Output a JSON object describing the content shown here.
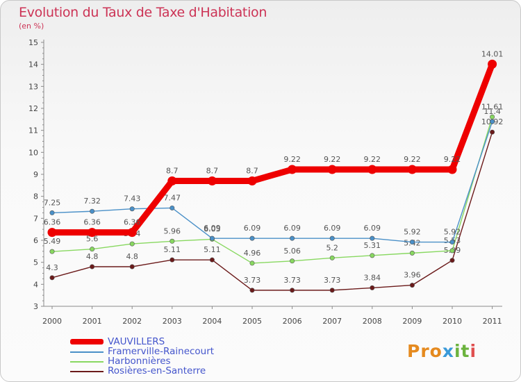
{
  "colors": {
    "title": "#cc3355",
    "axis": "#8a8a8a",
    "grid": "#dddddd",
    "legend_text": "#4455cc"
  },
  "chart_data": {
    "type": "line",
    "title": "Evolution du Taux de Taxe d'Habitation",
    "subtitle": "(en %)",
    "x": [
      "2000",
      "2001",
      "2002",
      "2003",
      "2004",
      "2005",
      "2006",
      "2007",
      "2008",
      "2009",
      "2010",
      "2011"
    ],
    "ylim": [
      3,
      15
    ],
    "yticks": [
      3,
      4,
      5,
      6,
      7,
      8,
      9,
      10,
      11,
      12,
      13,
      14,
      15
    ],
    "grid": false,
    "legend_position": "bottom-left",
    "series": [
      {
        "name": "VAUVILLERS",
        "color": "#ee0000",
        "values": [
          6.36,
          6.36,
          6.36,
          8.7,
          8.7,
          8.7,
          9.22,
          9.22,
          9.22,
          9.22,
          9.22,
          14.01
        ],
        "labels": [
          "6.36",
          "6.36",
          "6.36",
          "8.7",
          "8.7",
          "8.7",
          "9.22",
          "9.22",
          "9.22",
          "9.22",
          "9.22",
          "14.01"
        ]
      },
      {
        "name": "Framerville-Rainecourt",
        "color": "#4a90c8",
        "values": [
          7.25,
          7.32,
          7.43,
          7.47,
          6.09,
          6.09,
          6.09,
          6.09,
          6.09,
          5.92,
          5.92,
          11.4
        ],
        "labels": [
          "7.25",
          "7.32",
          "7.43",
          "7.47",
          "6.09",
          "6.09",
          "6.09",
          "6.09",
          "6.09",
          "5.92",
          "5.92",
          "11.4"
        ]
      },
      {
        "name": "Harbonnières",
        "color": "#88d860",
        "values": [
          5.49,
          5.6,
          5.84,
          5.96,
          6.05,
          4.96,
          5.06,
          5.2,
          5.31,
          5.42,
          5.53,
          11.61
        ],
        "labels": [
          "5.49",
          "5.6",
          "5.84",
          "5.96",
          "6.05",
          "4.96",
          "5.06",
          "5.2",
          "5.31",
          "5.42",
          "5.53",
          "11.61"
        ]
      },
      {
        "name": "Rosières-en-Santerre",
        "color": "#6b1a1a",
        "values": [
          4.3,
          4.8,
          4.8,
          5.11,
          5.11,
          3.73,
          3.73,
          3.73,
          3.84,
          3.96,
          5.09,
          10.92
        ],
        "labels": [
          "4.3",
          "4.8",
          "4.8",
          "5.11",
          "5.11",
          "3.73",
          "3.73",
          "3.73",
          "3.84",
          "3.96",
          "5.09",
          "10.92"
        ]
      }
    ]
  },
  "logo": {
    "part1": "Pro",
    "part2": "x",
    "part3": "it",
    "part4": "i"
  }
}
